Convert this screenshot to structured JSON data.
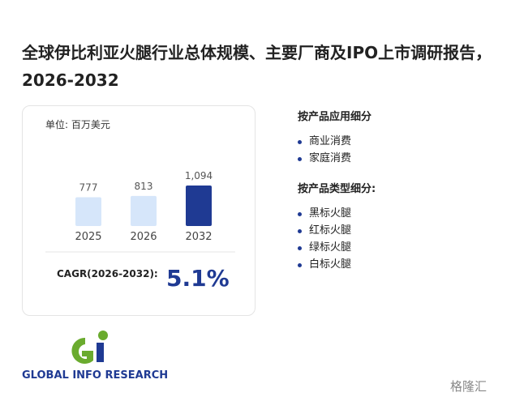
{
  "title": "全球伊比利亚火腿行业总体规模、主要厂商及IPO上市调研报告，2026-2032",
  "chart_data": {
    "type": "bar",
    "unit_label": "单位: 百万美元",
    "categories": [
      "2025",
      "2026",
      "2032"
    ],
    "values": [
      777,
      813,
      1094
    ],
    "value_labels": [
      "777",
      "813",
      "1,094"
    ],
    "colors": [
      "#d6e6fa",
      "#d6e6fa",
      "#1f3a93"
    ]
  },
  "cagr": {
    "label": "CAGR(2026-2032):",
    "value": "5.1%"
  },
  "sections": [
    {
      "heading": "按产品应用细分",
      "items": [
        "商业消费",
        "家庭消费"
      ]
    },
    {
      "heading": "按产品类型细分:",
      "items": [
        "黑标火腿",
        "红标火腿",
        "绿标火腿",
        "白标火腿"
      ]
    }
  ],
  "logo": "GLOBAL INFO RESEARCH",
  "watermark": "格隆汇"
}
